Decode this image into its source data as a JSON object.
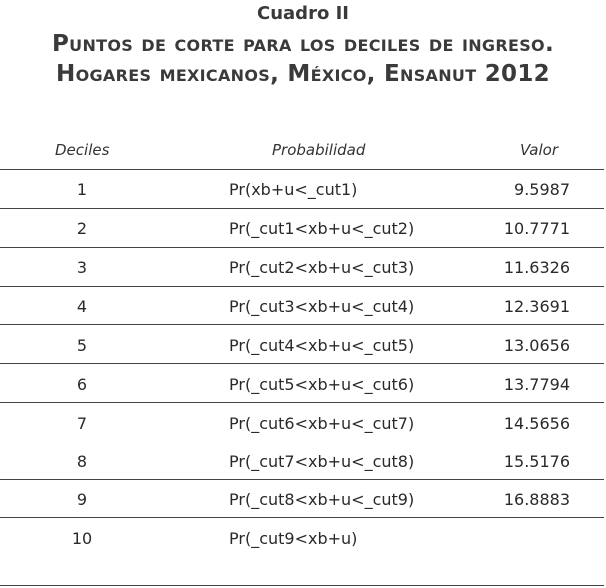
{
  "caption": "Cuadro II",
  "title_line1": "Puntos de corte para los deciles de ingreso.",
  "title_line2": "Hogares mexicanos, México, Ensanut 2012",
  "headers": {
    "deciles": "Deciles",
    "probabilidad": "Probabilidad",
    "valor": "Valor"
  },
  "rows": [
    {
      "decil": "1",
      "prob": "Pr(xb+u<_cut1)",
      "valor": "9.5987"
    },
    {
      "decil": "2",
      "prob": "Pr(_cut1<xb+u<_cut2)",
      "valor": "10.7771"
    },
    {
      "decil": "3",
      "prob": "Pr(_cut2<xb+u<_cut3)",
      "valor": "11.6326"
    },
    {
      "decil": "4",
      "prob": "Pr(_cut3<xb+u<_cut4)",
      "valor": "12.3691"
    },
    {
      "decil": "5",
      "prob": "Pr(_cut4<xb+u<_cut5)",
      "valor": "13.0656"
    },
    {
      "decil": "6",
      "prob": "Pr(_cut5<xb+u<_cut6)",
      "valor": "13.7794"
    },
    {
      "decil": "7",
      "prob": "Pr(_cut6<xb+u<_cut7)",
      "valor": "14.5656"
    },
    {
      "decil": "8",
      "prob": "Pr(_cut7<xb+u<_cut8)",
      "valor": "15.5176"
    },
    {
      "decil": "9",
      "prob": "Pr(_cut8<xb+u<_cut9)",
      "valor": "16.8883"
    },
    {
      "decil": "10",
      "prob": "Pr(_cut9<xb+u)",
      "valor": ""
    }
  ]
}
